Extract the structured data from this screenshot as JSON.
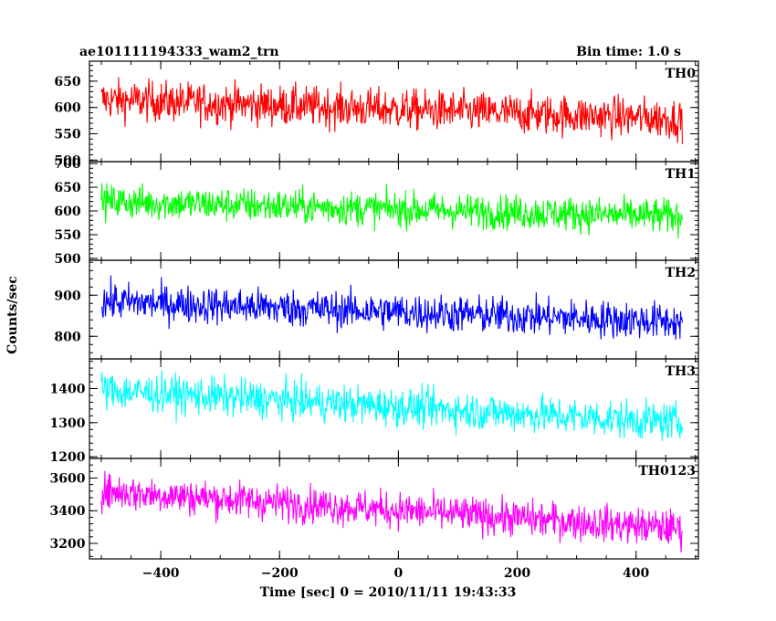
{
  "header": {
    "title": "ae101111194333_wam2_trn",
    "bin_time": "Bin time: 1.0 s"
  },
  "axes": {
    "xlabel": "Time [sec] 0 = 2010/11/11 19:43:33",
    "ylabel": "Counts/sec"
  },
  "chart_data": [
    {
      "type": "line",
      "name": "TH0",
      "color": "#ff0000",
      "xlim": [
        -520,
        505
      ],
      "ylim": [
        497,
        688
      ],
      "x_ticks": [
        -400,
        -200,
        0,
        200,
        400
      ],
      "y_ticks": [
        500,
        550,
        600,
        650
      ],
      "x_range": [
        -500,
        478
      ],
      "y_mean_start": 615,
      "y_mean_end": 578,
      "noise_amplitude": 38
    },
    {
      "type": "line",
      "name": "TH1",
      "color": "#00ff00",
      "xlim": [
        -520,
        505
      ],
      "ylim": [
        496,
        704
      ],
      "x_ticks": [
        -400,
        -200,
        0,
        200,
        400
      ],
      "y_ticks": [
        500,
        550,
        600,
        650,
        700
      ],
      "x_range": [
        -500,
        478
      ],
      "y_mean_start": 620,
      "y_mean_end": 588,
      "noise_amplitude": 36
    },
    {
      "type": "line",
      "name": "TH2",
      "color": "#0000ff",
      "xlim": [
        -520,
        505
      ],
      "ylim": [
        745,
        985
      ],
      "x_ticks": [
        -400,
        -200,
        0,
        200,
        400
      ],
      "y_ticks": [
        800,
        900
      ],
      "x_range": [
        -500,
        478
      ],
      "y_mean_start": 885,
      "y_mean_end": 835,
      "noise_amplitude": 45
    },
    {
      "type": "line",
      "name": "TH3",
      "color": "#00ffff",
      "xlim": [
        -520,
        505
      ],
      "ylim": [
        1195,
        1487
      ],
      "x_ticks": [
        -400,
        -200,
        0,
        200,
        400
      ],
      "y_ticks": [
        1200,
        1300,
        1400
      ],
      "x_range": [
        -500,
        478
      ],
      "y_mean_start": 1395,
      "y_mean_end": 1300,
      "noise_amplitude": 55
    },
    {
      "type": "line",
      "name": "TH0123",
      "color": "#ff00ff",
      "xlim": [
        -520,
        505
      ],
      "ylim": [
        3105,
        3720
      ],
      "x_ticks": [
        -400,
        -200,
        0,
        200,
        400
      ],
      "y_ticks": [
        3200,
        3400,
        3600
      ],
      "x_range": [
        -500,
        478
      ],
      "y_mean_start": 3520,
      "y_mean_end": 3290,
      "noise_amplitude": 110
    }
  ]
}
